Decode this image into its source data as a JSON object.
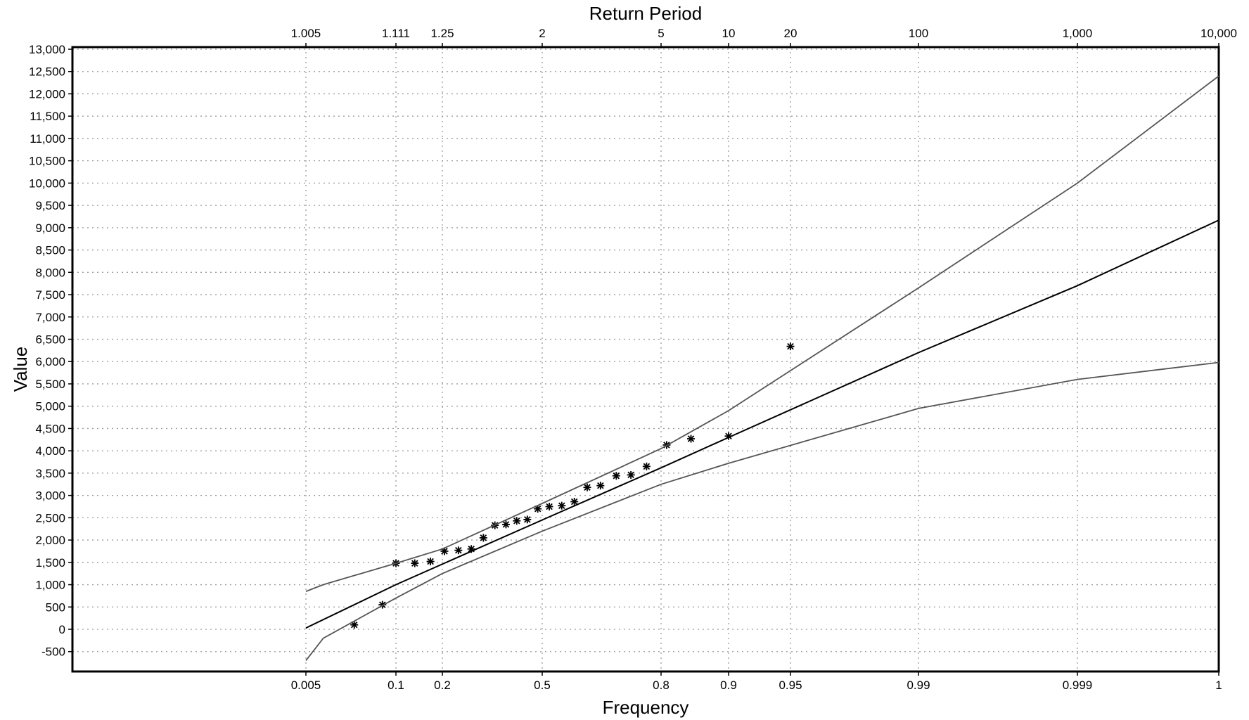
{
  "chart_data": {
    "type": "scatter",
    "title": "Return Period",
    "xlabel": "Frequency",
    "ylabel": "Value",
    "x_scale": "probability",
    "ylim": [
      -1000,
      13000
    ],
    "grid": true,
    "bottom_ticks": [
      {
        "value": 0.005,
        "label": "0.005"
      },
      {
        "value": 0.1,
        "label": "0.1"
      },
      {
        "value": 0.2,
        "label": "0.2"
      },
      {
        "value": 0.5,
        "label": "0.5"
      },
      {
        "value": 0.8,
        "label": "0.8"
      },
      {
        "value": 0.9,
        "label": "0.9"
      },
      {
        "value": 0.95,
        "label": "0.95"
      },
      {
        "value": 0.99,
        "label": "0.99"
      },
      {
        "value": 0.999,
        "label": "0.999"
      },
      {
        "value": 0.9999,
        "label": "1"
      }
    ],
    "top_ticks": [
      {
        "value": 0.005,
        "label": "1.005"
      },
      {
        "value": 0.1,
        "label": "1.111"
      },
      {
        "value": 0.2,
        "label": "1.25"
      },
      {
        "value": 0.5,
        "label": "2"
      },
      {
        "value": 0.8,
        "label": "5"
      },
      {
        "value": 0.9,
        "label": "10"
      },
      {
        "value": 0.95,
        "label": "20"
      },
      {
        "value": 0.99,
        "label": "100"
      },
      {
        "value": 0.999,
        "label": "1,000"
      },
      {
        "value": 0.9999,
        "label": "10,000"
      }
    ],
    "y_ticks": [
      {
        "value": -500,
        "label": "-500"
      },
      {
        "value": 0,
        "label": "0"
      },
      {
        "value": 500,
        "label": "500"
      },
      {
        "value": 1000,
        "label": "1,000"
      },
      {
        "value": 1500,
        "label": "1,500"
      },
      {
        "value": 2000,
        "label": "2,000"
      },
      {
        "value": 2500,
        "label": "2,500"
      },
      {
        "value": 3000,
        "label": "3,000"
      },
      {
        "value": 3500,
        "label": "3,500"
      },
      {
        "value": 4000,
        "label": "4,000"
      },
      {
        "value": 4500,
        "label": "4,500"
      },
      {
        "value": 5000,
        "label": "5,000"
      },
      {
        "value": 5500,
        "label": "5,500"
      },
      {
        "value": 6000,
        "label": "6,000"
      },
      {
        "value": 6500,
        "label": "6,500"
      },
      {
        "value": 7000,
        "label": "7,000"
      },
      {
        "value": 7500,
        "label": "7,500"
      },
      {
        "value": 8000,
        "label": "8,000"
      },
      {
        "value": 8500,
        "label": "8,500"
      },
      {
        "value": 9000,
        "label": "9,000"
      },
      {
        "value": 9500,
        "label": "9,500"
      },
      {
        "value": 10000,
        "label": "10,000"
      },
      {
        "value": 10500,
        "label": "10,500"
      },
      {
        "value": 11000,
        "label": "11,000"
      },
      {
        "value": 11500,
        "label": "11,500"
      },
      {
        "value": 12000,
        "label": "12,000"
      },
      {
        "value": 12500,
        "label": "12,500"
      },
      {
        "value": 13000,
        "label": "13,000"
      }
    ],
    "series": [
      {
        "kind": "observed",
        "marker": "asterisk",
        "color": "#000000",
        "points": [
          {
            "x": 0.03,
            "y": 100
          },
          {
            "x": 0.07,
            "y": 550
          },
          {
            "x": 0.1,
            "y": 1480
          },
          {
            "x": 0.135,
            "y": 1480
          },
          {
            "x": 0.17,
            "y": 1520
          },
          {
            "x": 0.205,
            "y": 1750
          },
          {
            "x": 0.24,
            "y": 1770
          },
          {
            "x": 0.275,
            "y": 1800
          },
          {
            "x": 0.31,
            "y": 2050
          },
          {
            "x": 0.345,
            "y": 2330
          },
          {
            "x": 0.38,
            "y": 2350
          },
          {
            "x": 0.415,
            "y": 2430
          },
          {
            "x": 0.45,
            "y": 2460
          },
          {
            "x": 0.485,
            "y": 2700
          },
          {
            "x": 0.52,
            "y": 2750
          },
          {
            "x": 0.555,
            "y": 2770
          },
          {
            "x": 0.59,
            "y": 2860
          },
          {
            "x": 0.625,
            "y": 3180
          },
          {
            "x": 0.66,
            "y": 3220
          },
          {
            "x": 0.7,
            "y": 3440
          },
          {
            "x": 0.735,
            "y": 3460
          },
          {
            "x": 0.77,
            "y": 3650
          },
          {
            "x": 0.81,
            "y": 4130
          },
          {
            "x": 0.85,
            "y": 4270
          },
          {
            "x": 0.9,
            "y": 4330
          },
          {
            "x": 0.95,
            "y": 6340
          }
        ]
      },
      {
        "kind": "fitted",
        "color": "#000000",
        "points": [
          {
            "x": 0.005,
            "y": 30
          },
          {
            "x": 0.1,
            "y": 1000
          },
          {
            "x": 0.5,
            "y": 2450
          },
          {
            "x": 0.8,
            "y": 3620
          },
          {
            "x": 0.9,
            "y": 4300
          },
          {
            "x": 0.99,
            "y": 6200
          },
          {
            "x": 0.999,
            "y": 7700
          },
          {
            "x": 0.9999,
            "y": 9170
          }
        ]
      },
      {
        "kind": "upper-confidence",
        "color": "#555555",
        "points": [
          {
            "x": 0.005,
            "y": 850
          },
          {
            "x": 0.01,
            "y": 1000
          },
          {
            "x": 0.1,
            "y": 1480
          },
          {
            "x": 0.2,
            "y": 1800
          },
          {
            "x": 0.5,
            "y": 2820
          },
          {
            "x": 0.8,
            "y": 4050
          },
          {
            "x": 0.9,
            "y": 4900
          },
          {
            "x": 0.99,
            "y": 7650
          },
          {
            "x": 0.999,
            "y": 10000
          },
          {
            "x": 0.9999,
            "y": 12400
          }
        ]
      },
      {
        "kind": "lower-confidence",
        "color": "#555555",
        "points": [
          {
            "x": 0.005,
            "y": -700
          },
          {
            "x": 0.01,
            "y": -200
          },
          {
            "x": 0.1,
            "y": 700
          },
          {
            "x": 0.2,
            "y": 1250
          },
          {
            "x": 0.5,
            "y": 2200
          },
          {
            "x": 0.8,
            "y": 3250
          },
          {
            "x": 0.9,
            "y": 3720
          },
          {
            "x": 0.99,
            "y": 4950
          },
          {
            "x": 0.999,
            "y": 5600
          },
          {
            "x": 0.9999,
            "y": 5980
          }
        ]
      }
    ]
  }
}
